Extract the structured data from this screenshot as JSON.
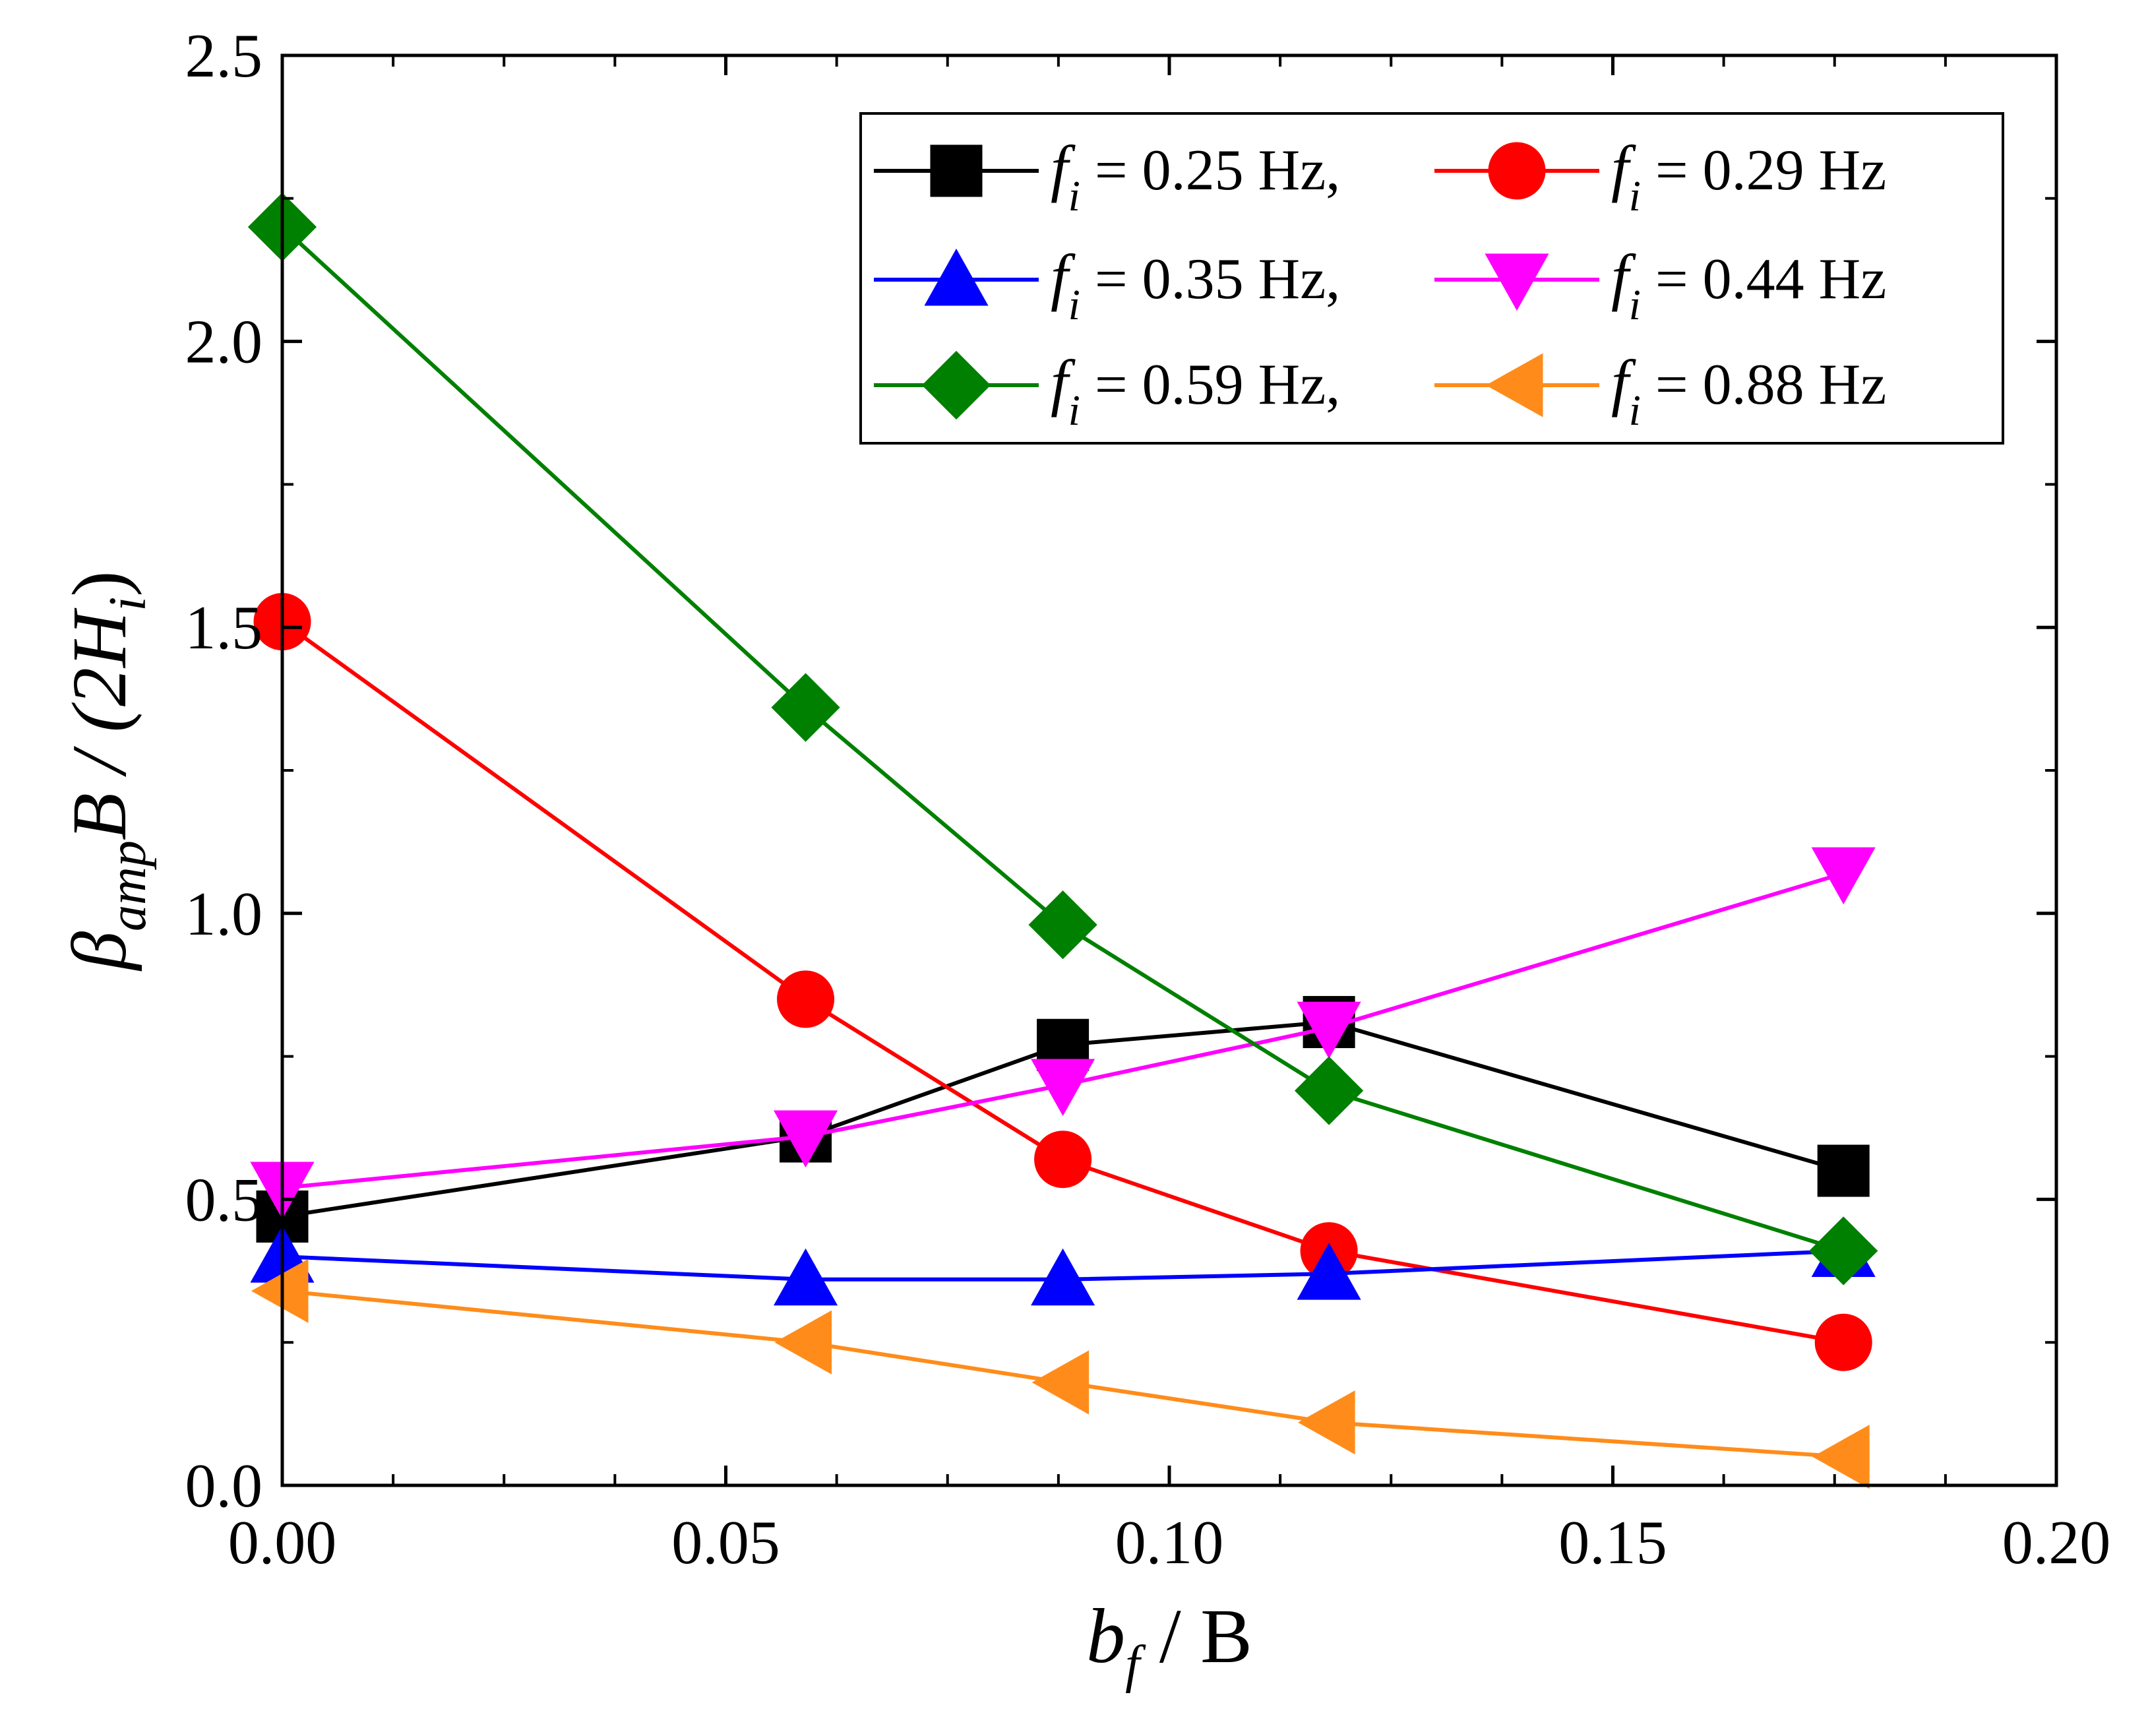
{
  "chart_data": {
    "type": "line",
    "title": "",
    "xlabel": {
      "main": "b",
      "sub": "f",
      "rest": " / B"
    },
    "ylabel": {
      "p1": "β",
      "p1sub": "amp",
      "p2": "B / (2H",
      "p2sub": "i",
      "p3": ")"
    },
    "xlim": [
      0.0,
      0.2
    ],
    "ylim": [
      0.0,
      2.5
    ],
    "xticks": [
      "0.00",
      "0.05",
      "0.10",
      "0.15",
      "0.20"
    ],
    "yticks": [
      "0.0",
      "0.5",
      "1.0",
      "1.5",
      "2.0",
      "2.5"
    ],
    "grid": false,
    "legend_position": "top-right",
    "x": [
      0.0,
      0.059,
      0.088,
      0.118,
      0.176
    ],
    "series": [
      {
        "name": "f",
        "sub": "i",
        "label": " = 0.25 Hz,",
        "color": "#000000",
        "marker": "square",
        "values": [
          0.47,
          0.61,
          0.77,
          0.81,
          0.55
        ]
      },
      {
        "name": "f",
        "sub": "i",
        "label": " = 0.29 Hz",
        "color": "#ff0000",
        "marker": "circle",
        "values": [
          1.51,
          0.85,
          0.57,
          0.41,
          0.25
        ]
      },
      {
        "name": "f",
        "sub": "i",
        "label": " = 0.35 Hz,",
        "color": "#0000ff",
        "marker": "triangle-up",
        "values": [
          0.4,
          0.36,
          0.36,
          0.37,
          0.41
        ]
      },
      {
        "name": "f",
        "sub": "i",
        "label": " = 0.44 Hz",
        "color": "#ff00ff",
        "marker": "triangle-down",
        "values": [
          0.52,
          0.61,
          0.7,
          0.8,
          1.07
        ]
      },
      {
        "name": "f",
        "sub": "i",
        "label": " = 0.59 Hz,",
        "color": "#008000",
        "marker": "diamond",
        "values": [
          2.2,
          1.36,
          0.98,
          0.69,
          0.41
        ]
      },
      {
        "name": "f",
        "sub": "i",
        "label": " = 0.88 Hz",
        "color": "#ff8c1a",
        "marker": "triangle-left",
        "values": [
          0.34,
          0.25,
          0.18,
          0.11,
          0.05
        ]
      }
    ]
  }
}
